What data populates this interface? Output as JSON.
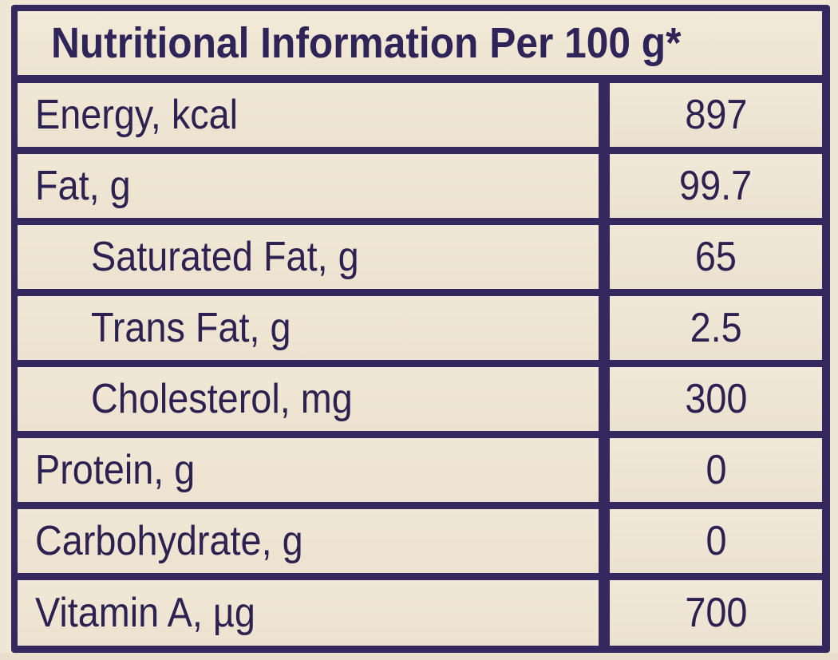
{
  "table": {
    "title": "Nutritional Information Per 100 g*",
    "rows": [
      {
        "label": "Energy, kcal",
        "value": "897"
      },
      {
        "label": "Fat, g",
        "value": "99.7"
      },
      {
        "label": "Saturated Fat, g",
        "value": "65"
      },
      {
        "label": "Trans Fat, g",
        "value": "2.5"
      },
      {
        "label": "Cholesterol, mg",
        "value": "300"
      },
      {
        "label": "Protein, g",
        "value": "0"
      },
      {
        "label": "Carbohydrate, g",
        "value": "0"
      },
      {
        "label": "Vitamin A, µg",
        "value": "700"
      }
    ]
  },
  "colors": {
    "border": "#34285e",
    "text": "#2c2150",
    "background": "#efe6d6"
  }
}
